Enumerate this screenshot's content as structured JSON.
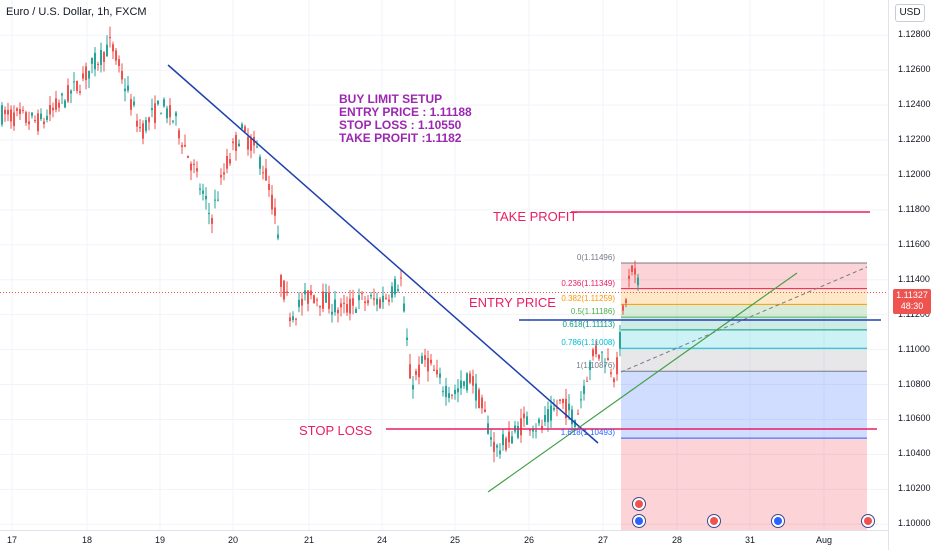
{
  "header": {
    "symbol_text": "Euro / U.S. Dollar, 1h, FXCM"
  },
  "currency_button": "USD",
  "price_axis": [
    "1.12800",
    "1.12600",
    "1.12400",
    "1.12200",
    "1.12000",
    "1.11800",
    "1.11600",
    "1.11400",
    "1.11200",
    "1.11000",
    "1.10800",
    "1.10600",
    "1.10400",
    "1.10200",
    "1.10000"
  ],
  "current_price": {
    "price": "1.11327",
    "countdown": "48:30"
  },
  "date_axis": [
    "17",
    "18",
    "19",
    "20",
    "21",
    "24",
    "25",
    "26",
    "27",
    "28",
    "31",
    "Aug"
  ],
  "annotations": {
    "setup_lines": [
      "BUY LIMIT SETUP",
      "ENTRY PRICE : 1.11188",
      "STOP LOSS : 1.10550",
      "TAKE PROFIT :1.1182"
    ],
    "take_profit": "TAKE PROFIT",
    "entry_price": "ENTRY PRICE",
    "stop_loss": "STOP LOSS"
  },
  "fib_levels": [
    {
      "text": "0(1.11496)",
      "price": 1.11496,
      "color": "#787b86"
    },
    {
      "text": "0.236(1.11349)",
      "price": 1.11349,
      "color": "#e91e63"
    },
    {
      "text": "0.382(1.11259)",
      "price": 1.11259,
      "color": "#ff9800"
    },
    {
      "text": "0.5(1.11186)",
      "price": 1.11186,
      "color": "#4caf50"
    },
    {
      "text": "0.618(1.11113)",
      "price": 1.11113,
      "color": "#089981"
    },
    {
      "text": "0.786(1.11008)",
      "price": 1.11008,
      "color": "#00bcd4"
    },
    {
      "text": "1(1.10876)",
      "price": 1.10876,
      "color": "#787b86"
    },
    {
      "text": "1.618(1.10493)",
      "price": 1.10493,
      "color": "#2962ff"
    }
  ],
  "colors": {
    "up": "#26a69a",
    "down": "#ef5350",
    "trendline": "#1e40af",
    "support": "#43a047",
    "level_red": "#e91e63",
    "entry_blue": "#1e40af"
  },
  "chart_data": {
    "type": "candlestick",
    "x_ticks": [
      "17",
      "18",
      "19",
      "20",
      "21",
      "24",
      "25",
      "26",
      "27",
      "28",
      "31",
      "Aug"
    ],
    "y_range": [
      1.0995,
      1.1295
    ],
    "key_levels": {
      "take_profit": 1.1182,
      "entry": 1.11188,
      "stop_loss": 1.1055,
      "last": 1.11327
    },
    "path_points": [
      [
        0,
        1.1235
      ],
      [
        40,
        1.123
      ],
      [
        75,
        1.125
      ],
      [
        95,
        1.1265
      ],
      [
        110,
        1.1275
      ],
      [
        125,
        1.125
      ],
      [
        140,
        1.1225
      ],
      [
        160,
        1.124
      ],
      [
        175,
        1.123
      ],
      [
        195,
        1.12
      ],
      [
        210,
        1.1175
      ],
      [
        225,
        1.1205
      ],
      [
        240,
        1.1225
      ],
      [
        255,
        1.1215
      ],
      [
        265,
        1.12
      ],
      [
        275,
        1.1175
      ],
      [
        280,
        1.114
      ],
      [
        290,
        1.112
      ],
      [
        310,
        1.1132
      ],
      [
        325,
        1.1128
      ],
      [
        340,
        1.1122
      ],
      [
        360,
        1.1128
      ],
      [
        380,
        1.1128
      ],
      [
        400,
        1.114
      ],
      [
        405,
        1.111
      ],
      [
        410,
        1.108
      ],
      [
        425,
        1.1095
      ],
      [
        440,
        1.108
      ],
      [
        455,
        1.1075
      ],
      [
        470,
        1.1085
      ],
      [
        485,
        1.106
      ],
      [
        495,
        1.1042
      ],
      [
        510,
        1.105
      ],
      [
        525,
        1.106
      ],
      [
        540,
        1.1055
      ],
      [
        560,
        1.107
      ],
      [
        575,
        1.106
      ],
      [
        585,
        1.1085
      ],
      [
        595,
        1.11
      ],
      [
        605,
        1.1095
      ],
      [
        615,
        1.1085
      ],
      [
        622,
        1.112
      ],
      [
        630,
        1.1145
      ],
      [
        640,
        1.1135
      ]
    ]
  }
}
